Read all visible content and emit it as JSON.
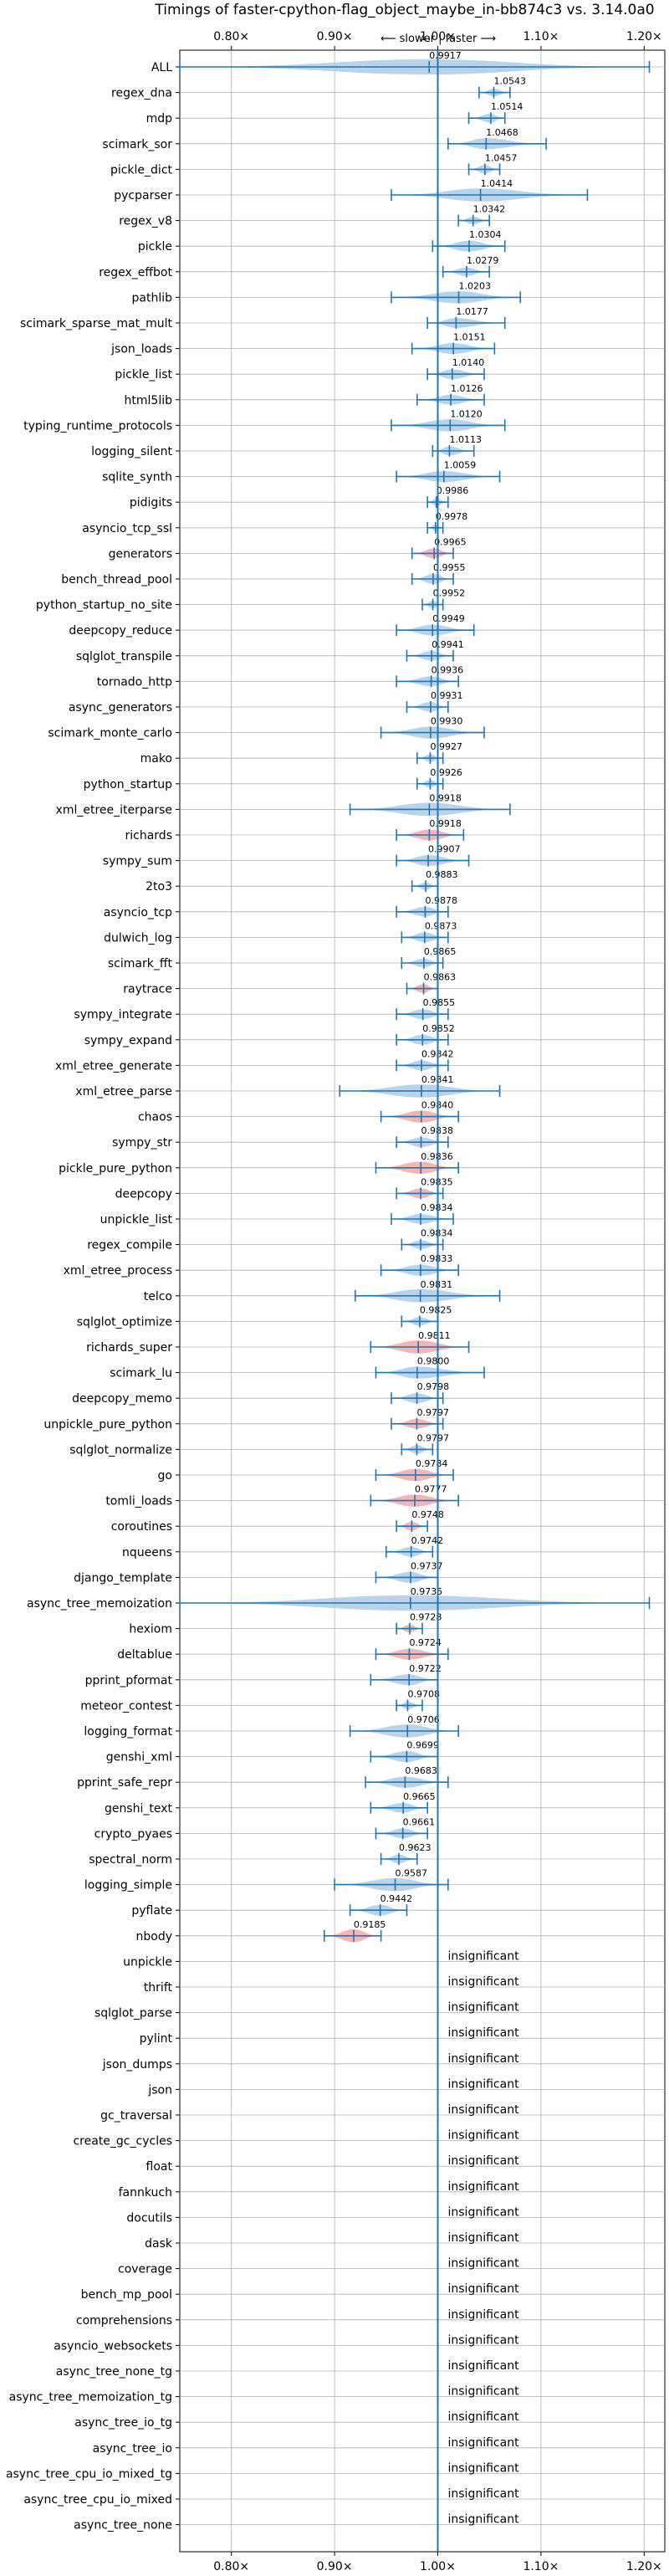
{
  "chart_data": {
    "type": "violin",
    "title": "Timings of faster-cpython-flag_object_maybe_in-bb874c3 vs. 3.14.0a0",
    "subtitle": "⟵ slower | faster ⟶",
    "x_ticks": [
      "0.80×",
      "0.90×",
      "1.00×",
      "1.10×",
      "1.20×"
    ],
    "xlim": [
      0.75,
      1.22
    ],
    "reference_line": 1.0,
    "grid": true,
    "colors": {
      "faster": "#aecbe5",
      "slower": "#f5a8a8",
      "line": "#1f77b4"
    },
    "insignificant_label": "insignificant",
    "benchmarks": [
      {
        "name": "ALL",
        "value": 0.9917,
        "label": "0.9917",
        "lo": 0.75,
        "hi": 1.205,
        "w": 0.7,
        "slower": false
      },
      {
        "name": "regex_dna",
        "value": 1.0543,
        "label": "1.0543",
        "lo": 1.04,
        "hi": 1.07,
        "w": 0.35,
        "slower": false
      },
      {
        "name": "mdp",
        "value": 1.0514,
        "label": "1.0514",
        "lo": 1.03,
        "hi": 1.065,
        "w": 0.4,
        "slower": false
      },
      {
        "name": "scimark_sor",
        "value": 1.0468,
        "label": "1.0468",
        "lo": 1.01,
        "hi": 1.105,
        "w": 0.5,
        "slower": false
      },
      {
        "name": "pickle_dict",
        "value": 1.0457,
        "label": "1.0457",
        "lo": 1.03,
        "hi": 1.06,
        "w": 0.4,
        "slower": false
      },
      {
        "name": "pycparser",
        "value": 1.0414,
        "label": "1.0414",
        "lo": 0.955,
        "hi": 1.145,
        "w": 0.6,
        "slower": false
      },
      {
        "name": "regex_v8",
        "value": 1.0342,
        "label": "1.0342",
        "lo": 1.02,
        "hi": 1.05,
        "w": 0.35,
        "slower": false
      },
      {
        "name": "pickle",
        "value": 1.0304,
        "label": "1.0304",
        "lo": 0.995,
        "hi": 1.065,
        "w": 0.5,
        "slower": false
      },
      {
        "name": "regex_effbot",
        "value": 1.0279,
        "label": "1.0279",
        "lo": 1.005,
        "hi": 1.05,
        "w": 0.4,
        "slower": false
      },
      {
        "name": "pathlib",
        "value": 1.0203,
        "label": "1.0203",
        "lo": 0.955,
        "hi": 1.08,
        "w": 0.55,
        "slower": false
      },
      {
        "name": "scimark_sparse_mat_mult",
        "value": 1.0177,
        "label": "1.0177",
        "lo": 0.99,
        "hi": 1.065,
        "w": 0.45,
        "slower": false
      },
      {
        "name": "json_loads",
        "value": 1.0151,
        "label": "1.0151",
        "lo": 0.975,
        "hi": 1.055,
        "w": 0.5,
        "slower": false
      },
      {
        "name": "pickle_list",
        "value": 1.014,
        "label": "1.0140",
        "lo": 0.99,
        "hi": 1.045,
        "w": 0.45,
        "slower": false
      },
      {
        "name": "html5lib",
        "value": 1.0126,
        "label": "1.0126",
        "lo": 0.98,
        "hi": 1.045,
        "w": 0.45,
        "slower": false
      },
      {
        "name": "typing_runtime_protocols",
        "value": 1.012,
        "label": "1.0120",
        "lo": 0.955,
        "hi": 1.065,
        "w": 0.55,
        "slower": false
      },
      {
        "name": "logging_silent",
        "value": 1.0113,
        "label": "1.0113",
        "lo": 0.995,
        "hi": 1.035,
        "w": 0.4,
        "slower": false
      },
      {
        "name": "sqlite_synth",
        "value": 1.0059,
        "label": "1.0059",
        "lo": 0.96,
        "hi": 1.06,
        "w": 0.5,
        "slower": false
      },
      {
        "name": "pidigits",
        "value": 0.9986,
        "label": "0.9986",
        "lo": 0.99,
        "hi": 1.01,
        "w": 0.35,
        "slower": false
      },
      {
        "name": "asyncio_tcp_ssl",
        "value": 0.9978,
        "label": "0.9978",
        "lo": 0.99,
        "hi": 1.005,
        "w": 0.3,
        "slower": false
      },
      {
        "name": "generators",
        "value": 0.9965,
        "label": "0.9965",
        "lo": 0.975,
        "hi": 1.015,
        "w": 0.45,
        "slower": true
      },
      {
        "name": "bench_thread_pool",
        "value": 0.9955,
        "label": "0.9955",
        "lo": 0.975,
        "hi": 1.015,
        "w": 0.45,
        "slower": false
      },
      {
        "name": "python_startup_no_site",
        "value": 0.9952,
        "label": "0.9952",
        "lo": 0.985,
        "hi": 1.005,
        "w": 0.35,
        "slower": false
      },
      {
        "name": "deepcopy_reduce",
        "value": 0.9949,
        "label": "0.9949",
        "lo": 0.96,
        "hi": 1.035,
        "w": 0.5,
        "slower": false
      },
      {
        "name": "sqlglot_transpile",
        "value": 0.9941,
        "label": "0.9941",
        "lo": 0.97,
        "hi": 1.015,
        "w": 0.45,
        "slower": false
      },
      {
        "name": "tornado_http",
        "value": 0.9936,
        "label": "0.9936",
        "lo": 0.96,
        "hi": 1.02,
        "w": 0.45,
        "slower": false
      },
      {
        "name": "async_generators",
        "value": 0.9931,
        "label": "0.9931",
        "lo": 0.97,
        "hi": 1.01,
        "w": 0.45,
        "slower": false
      },
      {
        "name": "scimark_monte_carlo",
        "value": 0.993,
        "label": "0.9930",
        "lo": 0.945,
        "hi": 1.045,
        "w": 0.55,
        "slower": false
      },
      {
        "name": "mako",
        "value": 0.9927,
        "label": "0.9927",
        "lo": 0.98,
        "hi": 1.005,
        "w": 0.35,
        "slower": false
      },
      {
        "name": "python_startup",
        "value": 0.9926,
        "label": "0.9926",
        "lo": 0.98,
        "hi": 1.005,
        "w": 0.35,
        "slower": false
      },
      {
        "name": "xml_etree_iterparse",
        "value": 0.9918,
        "label": "0.9918",
        "lo": 0.915,
        "hi": 1.07,
        "w": 0.6,
        "slower": false
      },
      {
        "name": "richards",
        "value": 0.9918,
        "label": "0.9918",
        "lo": 0.96,
        "hi": 1.025,
        "w": 0.5,
        "slower": true
      },
      {
        "name": "sympy_sum",
        "value": 0.9907,
        "label": "0.9907",
        "lo": 0.96,
        "hi": 1.03,
        "w": 0.5,
        "slower": false
      },
      {
        "name": "2to3",
        "value": 0.9883,
        "label": "0.9883",
        "lo": 0.975,
        "hi": 1.0,
        "w": 0.35,
        "slower": false
      },
      {
        "name": "asyncio_tcp",
        "value": 0.9878,
        "label": "0.9878",
        "lo": 0.96,
        "hi": 1.01,
        "w": 0.45,
        "slower": false
      },
      {
        "name": "dulwich_log",
        "value": 0.9873,
        "label": "0.9873",
        "lo": 0.965,
        "hi": 1.01,
        "w": 0.45,
        "slower": false
      },
      {
        "name": "scimark_fft",
        "value": 0.9865,
        "label": "0.9865",
        "lo": 0.965,
        "hi": 1.005,
        "w": 0.4,
        "slower": false
      },
      {
        "name": "raytrace",
        "value": 0.9863,
        "label": "0.9863",
        "lo": 0.97,
        "hi": 1.0,
        "w": 0.4,
        "slower": true
      },
      {
        "name": "sympy_integrate",
        "value": 0.9855,
        "label": "0.9855",
        "lo": 0.96,
        "hi": 1.01,
        "w": 0.45,
        "slower": false
      },
      {
        "name": "sympy_expand",
        "value": 0.9852,
        "label": "0.9852",
        "lo": 0.96,
        "hi": 1.01,
        "w": 0.45,
        "slower": false
      },
      {
        "name": "xml_etree_generate",
        "value": 0.9842,
        "label": "0.9842",
        "lo": 0.96,
        "hi": 1.01,
        "w": 0.45,
        "slower": false
      },
      {
        "name": "xml_etree_parse",
        "value": 0.9841,
        "label": "0.9841",
        "lo": 0.905,
        "hi": 1.06,
        "w": 0.6,
        "slower": false
      },
      {
        "name": "chaos",
        "value": 0.984,
        "label": "0.9840",
        "lo": 0.945,
        "hi": 1.02,
        "w": 0.55,
        "slower": true
      },
      {
        "name": "sympy_str",
        "value": 0.9838,
        "label": "0.9838",
        "lo": 0.96,
        "hi": 1.01,
        "w": 0.45,
        "slower": false
      },
      {
        "name": "pickle_pure_python",
        "value": 0.9836,
        "label": "0.9836",
        "lo": 0.94,
        "hi": 1.02,
        "w": 0.55,
        "slower": true
      },
      {
        "name": "deepcopy",
        "value": 0.9835,
        "label": "0.9835",
        "lo": 0.96,
        "hi": 1.005,
        "w": 0.45,
        "slower": true
      },
      {
        "name": "unpickle_list",
        "value": 0.9834,
        "label": "0.9834",
        "lo": 0.955,
        "hi": 1.015,
        "w": 0.45,
        "slower": false
      },
      {
        "name": "regex_compile",
        "value": 0.9834,
        "label": "0.9834",
        "lo": 0.965,
        "hi": 1.005,
        "w": 0.4,
        "slower": false
      },
      {
        "name": "xml_etree_process",
        "value": 0.9833,
        "label": "0.9833",
        "lo": 0.945,
        "hi": 1.02,
        "w": 0.5,
        "slower": false
      },
      {
        "name": "telco",
        "value": 0.9831,
        "label": "0.9831",
        "lo": 0.92,
        "hi": 1.06,
        "w": 0.6,
        "slower": false
      },
      {
        "name": "sqlglot_optimize",
        "value": 0.9825,
        "label": "0.9825",
        "lo": 0.965,
        "hi": 1.0,
        "w": 0.4,
        "slower": false
      },
      {
        "name": "richards_super",
        "value": 0.9811,
        "label": "0.9811",
        "lo": 0.935,
        "hi": 1.03,
        "w": 0.6,
        "slower": true
      },
      {
        "name": "scimark_lu",
        "value": 0.98,
        "label": "0.9800",
        "lo": 0.94,
        "hi": 1.045,
        "w": 0.55,
        "slower": false
      },
      {
        "name": "deepcopy_memo",
        "value": 0.9798,
        "label": "0.9798",
        "lo": 0.955,
        "hi": 1.005,
        "w": 0.45,
        "slower": false
      },
      {
        "name": "unpickle_pure_python",
        "value": 0.9797,
        "label": "0.9797",
        "lo": 0.955,
        "hi": 1.005,
        "w": 0.45,
        "slower": true
      },
      {
        "name": "sqlglot_normalize",
        "value": 0.9797,
        "label": "0.9797",
        "lo": 0.965,
        "hi": 0.995,
        "w": 0.4,
        "slower": false
      },
      {
        "name": "go",
        "value": 0.9784,
        "label": "0.9784",
        "lo": 0.94,
        "hi": 1.015,
        "w": 0.55,
        "slower": true
      },
      {
        "name": "tomli_loads",
        "value": 0.9777,
        "label": "0.9777",
        "lo": 0.935,
        "hi": 1.02,
        "w": 0.55,
        "slower": true
      },
      {
        "name": "coroutines",
        "value": 0.9748,
        "label": "0.9748",
        "lo": 0.96,
        "hi": 0.99,
        "w": 0.4,
        "slower": true
      },
      {
        "name": "nqueens",
        "value": 0.9742,
        "label": "0.9742",
        "lo": 0.95,
        "hi": 0.995,
        "w": 0.45,
        "slower": false
      },
      {
        "name": "django_template",
        "value": 0.9737,
        "label": "0.9737",
        "lo": 0.94,
        "hi": 1.0,
        "w": 0.5,
        "slower": false
      },
      {
        "name": "async_tree_memoization",
        "value": 0.9735,
        "label": "0.9735",
        "lo": 0.75,
        "hi": 1.205,
        "w": 0.7,
        "slower": false
      },
      {
        "name": "hexiom",
        "value": 0.9728,
        "label": "0.9728",
        "lo": 0.96,
        "hi": 0.985,
        "w": 0.35,
        "slower": true
      },
      {
        "name": "deltablue",
        "value": 0.9724,
        "label": "0.9724",
        "lo": 0.94,
        "hi": 1.01,
        "w": 0.5,
        "slower": true
      },
      {
        "name": "pprint_pformat",
        "value": 0.9722,
        "label": "0.9722",
        "lo": 0.935,
        "hi": 1.0,
        "w": 0.5,
        "slower": false
      },
      {
        "name": "meteor_contest",
        "value": 0.9708,
        "label": "0.9708",
        "lo": 0.96,
        "hi": 0.985,
        "w": 0.35,
        "slower": false
      },
      {
        "name": "logging_format",
        "value": 0.9706,
        "label": "0.9706",
        "lo": 0.915,
        "hi": 1.02,
        "w": 0.6,
        "slower": false
      },
      {
        "name": "genshi_xml",
        "value": 0.9699,
        "label": "0.9699",
        "lo": 0.935,
        "hi": 1.0,
        "w": 0.5,
        "slower": false
      },
      {
        "name": "pprint_safe_repr",
        "value": 0.9683,
        "label": "0.9683",
        "lo": 0.93,
        "hi": 1.01,
        "w": 0.5,
        "slower": false
      },
      {
        "name": "genshi_text",
        "value": 0.9665,
        "label": "0.9665",
        "lo": 0.935,
        "hi": 0.99,
        "w": 0.45,
        "slower": false
      },
      {
        "name": "crypto_pyaes",
        "value": 0.9661,
        "label": "0.9661",
        "lo": 0.94,
        "hi": 0.99,
        "w": 0.45,
        "slower": false
      },
      {
        "name": "spectral_norm",
        "value": 0.9623,
        "label": "0.9623",
        "lo": 0.945,
        "hi": 0.98,
        "w": 0.4,
        "slower": false
      },
      {
        "name": "logging_simple",
        "value": 0.9587,
        "label": "0.9587",
        "lo": 0.9,
        "hi": 1.01,
        "w": 0.6,
        "slower": false
      },
      {
        "name": "pyflate",
        "value": 0.9442,
        "label": "0.9442",
        "lo": 0.915,
        "hi": 0.97,
        "w": 0.5,
        "slower": false
      },
      {
        "name": "nbody",
        "value": 0.9185,
        "label": "0.9185",
        "lo": 0.89,
        "hi": 0.945,
        "w": 0.6,
        "slower": true
      },
      {
        "name": "unpickle",
        "insignificant": true
      },
      {
        "name": "thrift",
        "insignificant": true
      },
      {
        "name": "sqlglot_parse",
        "insignificant": true
      },
      {
        "name": "pylint",
        "insignificant": true
      },
      {
        "name": "json_dumps",
        "insignificant": true
      },
      {
        "name": "json",
        "insignificant": true
      },
      {
        "name": "gc_traversal",
        "insignificant": true
      },
      {
        "name": "create_gc_cycles",
        "insignificant": true
      },
      {
        "name": "float",
        "insignificant": true
      },
      {
        "name": "fannkuch",
        "insignificant": true
      },
      {
        "name": "docutils",
        "insignificant": true
      },
      {
        "name": "dask",
        "insignificant": true
      },
      {
        "name": "coverage",
        "insignificant": true
      },
      {
        "name": "bench_mp_pool",
        "insignificant": true
      },
      {
        "name": "comprehensions",
        "insignificant": true
      },
      {
        "name": "asyncio_websockets",
        "insignificant": true
      },
      {
        "name": "async_tree_none_tg",
        "insignificant": true
      },
      {
        "name": "async_tree_memoization_tg",
        "insignificant": true
      },
      {
        "name": "async_tree_io_tg",
        "insignificant": true
      },
      {
        "name": "async_tree_io",
        "insignificant": true
      },
      {
        "name": "async_tree_cpu_io_mixed_tg",
        "insignificant": true
      },
      {
        "name": "async_tree_cpu_io_mixed",
        "insignificant": true
      },
      {
        "name": "async_tree_none",
        "insignificant": true
      }
    ]
  }
}
